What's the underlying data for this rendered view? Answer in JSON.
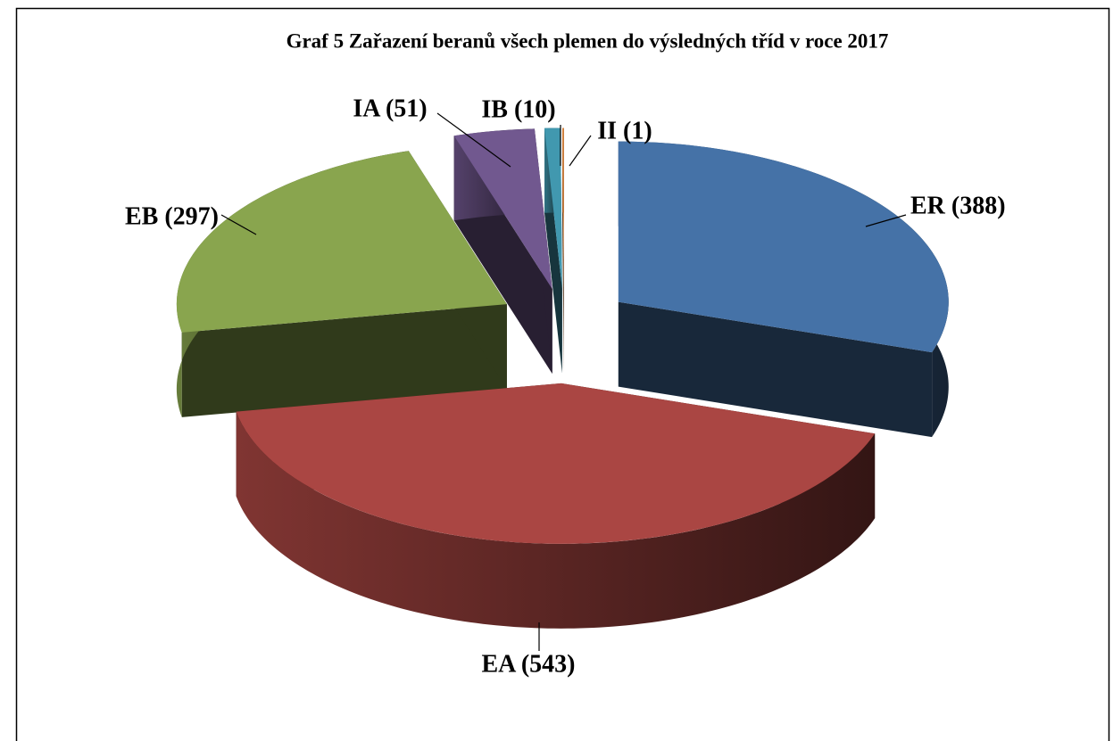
{
  "chart_data": {
    "type": "pie3d",
    "title": "Graf 5 Zařazení beranů všech plemen do výsledných tříd v roce 2017",
    "values": [
      388,
      543,
      297,
      51,
      10,
      1
    ],
    "value_labels": [
      "ER (388)",
      "EA (543)",
      "EB (297)",
      "IA (51)",
      "IB (10)",
      "II (1)"
    ],
    "colors": [
      "#4572a7",
      "#aa4643",
      "#89a54e",
      "#71588f",
      "#4198af",
      "#db843d"
    ]
  }
}
